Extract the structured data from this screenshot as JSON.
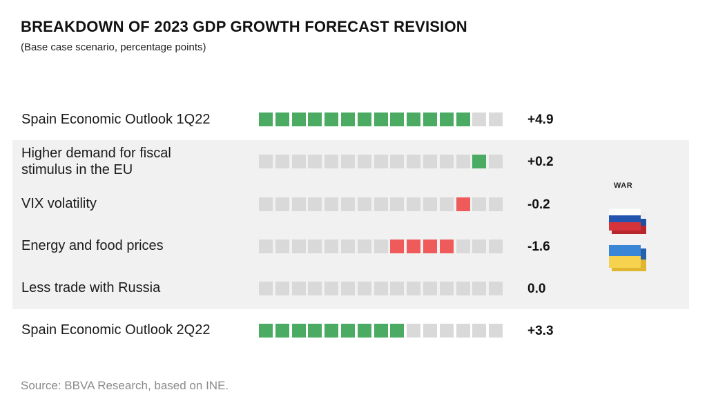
{
  "title": "BREAKDOWN OF 2023 GDP GROWTH FORECAST REVISION",
  "subtitle": "(Base case scenario, percentage points)",
  "source": "Source: BBVA Research, based on INE.",
  "war_label": "WAR",
  "flags": [
    {
      "name": "russia",
      "icon": "russia-flag-icon",
      "colors": [
        "#ffffff",
        "#1f4fa0",
        "#d6333a"
      ]
    },
    {
      "name": "ukraine",
      "icon": "ukraine-flag-icon",
      "colors": [
        "#2e74c8",
        "#f3cd48"
      ]
    }
  ],
  "colors": {
    "positive": "#4bab63",
    "negative": "#ef5b5b",
    "empty": "#d9d9d9",
    "band": "#f1f1f1"
  },
  "chart_data": {
    "type": "bar",
    "title": "BREAKDOWN OF 2023 GDP GROWTH FORECAST REVISION",
    "subtitle": "(Base case scenario, percentage points)",
    "total_blocks": 15,
    "categories": [
      "Spain Economic Outlook 1Q22",
      "Higher demand for fiscal stimulus in the EU",
      "VIX volatility",
      "Energy and food prices",
      "Less trade with Russia",
      "Spain Economic Outlook 2Q22"
    ],
    "values": [
      4.9,
      0.2,
      -0.2,
      -1.6,
      0.0,
      3.3
    ],
    "value_labels": [
      "+4.9",
      "+0.2",
      "-0.2",
      "-1.6",
      "0.0",
      "+3.3"
    ],
    "filled_blocks": [
      {
        "start": 0,
        "count": 13,
        "sign": "positive"
      },
      {
        "start": 13,
        "count": 1,
        "sign": "positive"
      },
      {
        "start": 12,
        "count": 1,
        "sign": "negative"
      },
      {
        "start": 8,
        "count": 4,
        "sign": "negative"
      },
      {
        "start": 0,
        "count": 0,
        "sign": "none"
      },
      {
        "start": 0,
        "count": 9,
        "sign": "positive"
      }
    ],
    "highlight_group": [
      "Higher demand for fiscal stimulus in the EU",
      "VIX volatility",
      "Energy and food prices",
      "Less trade with Russia"
    ]
  }
}
